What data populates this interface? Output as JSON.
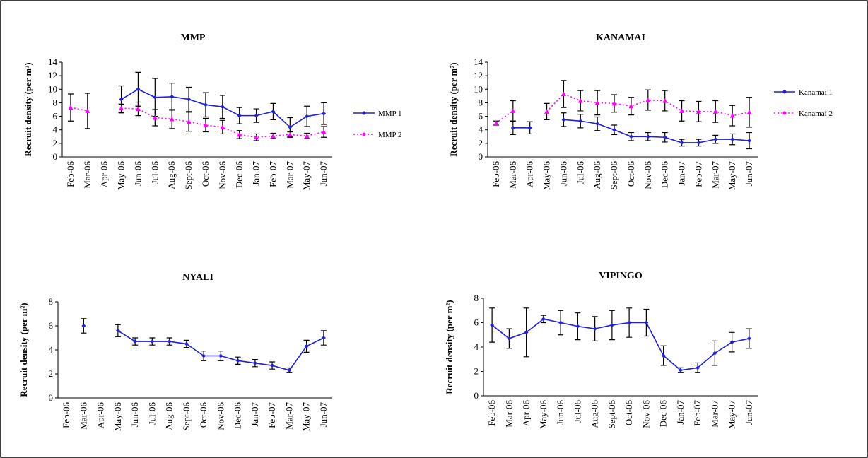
{
  "chart_data": [
    {
      "type": "line",
      "title": "MMP",
      "y_label": "Recruit density (per m²)",
      "categories": [
        "Feb-06",
        "Mar-06",
        "Apr-06",
        "May-06",
        "Jun-06",
        "Jul-06",
        "Aug-06",
        "Sept-06",
        "Oct-06",
        "Nov-06",
        "Dec-06",
        "Jan-07",
        "Feb-07",
        "Mar-07",
        "May-07",
        "Jun-07"
      ],
      "ylim": [
        0,
        14
      ],
      "yticks": [
        0,
        2,
        4,
        6,
        8,
        10,
        12,
        14
      ],
      "legend": "right",
      "series": [
        {
          "name": "MMP 1",
          "color": "#1f1fe0",
          "line_style": "solid",
          "values": [
            null,
            null,
            null,
            8.5,
            10,
            8.8,
            8.9,
            8.5,
            7.7,
            7.4,
            6.1,
            6.1,
            6.7,
            4.4,
            6,
            6.4
          ],
          "errors": [
            null,
            null,
            null,
            2,
            2.5,
            2.8,
            2,
            1.8,
            1.8,
            1.7,
            1.2,
            1,
            1.2,
            1.4,
            1.5,
            1.6
          ]
        },
        {
          "name": "MMP 2",
          "color": "#ff00ff",
          "line_style": "dotted",
          "values": [
            7.3,
            6.8,
            null,
            7.2,
            7.1,
            5.8,
            5.6,
            5.2,
            4.7,
            4.4,
            3.3,
            2.9,
            3.1,
            3.3,
            3.1,
            3.7
          ],
          "errors": [
            2,
            2.6,
            null,
            0.6,
            1,
            1.2,
            1.4,
            1.4,
            1,
            1,
            0.6,
            0.5,
            0.4,
            0.4,
            0.4,
            0.8
          ]
        }
      ]
    },
    {
      "type": "line",
      "title": "KANAMAI",
      "y_label": "Recruit density (per m²)",
      "categories": [
        "Feb-06",
        "Mar-06",
        "Apr-06",
        "May-06",
        "Jun-06",
        "Jul-06",
        "Aug-06",
        "Sept-06",
        "Oct-06",
        "Nov-06",
        "Dec-06",
        "Jan-07",
        "Feb-07",
        "Mar-07",
        "May-07",
        "Jun-07"
      ],
      "ylim": [
        0,
        14
      ],
      "yticks": [
        0,
        2,
        4,
        6,
        8,
        10,
        12,
        14
      ],
      "legend": "right",
      "series": [
        {
          "name": "Kanamai 1",
          "color": "#1f1fe0",
          "line_style": "solid",
          "values": [
            null,
            4.3,
            4.3,
            null,
            5.5,
            5.3,
            4.9,
            4,
            3,
            3,
            2.9,
            2.1,
            2.1,
            2.6,
            2.6,
            2.4
          ],
          "errors": [
            null,
            1,
            0.9,
            null,
            1,
            1,
            1,
            0.7,
            0.6,
            0.6,
            0.7,
            0.5,
            0.5,
            0.6,
            0.8,
            1.2
          ]
        },
        {
          "name": "Kanamai 2",
          "color": "#ff00ff",
          "line_style": "dotted",
          "values": [
            5,
            6.8,
            null,
            6.7,
            9.3,
            8.3,
            8,
            7.9,
            7.5,
            8.4,
            8.3,
            6.8,
            6.7,
            6.7,
            6.1,
            6.6
          ],
          "errors": [
            0.3,
            1.5,
            null,
            1.2,
            2,
            1.5,
            1.8,
            1.3,
            1.3,
            1.5,
            1.5,
            1.5,
            1.5,
            1.6,
            1.5,
            2.2
          ]
        }
      ]
    },
    {
      "type": "line",
      "title": "NYALI",
      "y_label": "Recruit density (per m²)",
      "categories": [
        "Feb-06",
        "Mar-06",
        "Apr-06",
        "May-06",
        "Jun-06",
        "Jul-06",
        "Aug-06",
        "Sept-06",
        "Oct-06",
        "Nov-06",
        "Dec-06",
        "Jan-07",
        "Feb-07",
        "Mar-07",
        "May-07",
        "Jun-07"
      ],
      "ylim": [
        0,
        8
      ],
      "yticks": [
        0,
        2,
        4,
        6,
        8
      ],
      "series": [
        {
          "color": "#1f1fe0",
          "line_style": "solid",
          "values": [
            null,
            6,
            null,
            5.6,
            4.7,
            4.7,
            4.7,
            4.5,
            3.5,
            3.5,
            3.1,
            2.9,
            2.7,
            2.3,
            4.3,
            5
          ],
          "errors": [
            null,
            0.6,
            null,
            0.5,
            0.3,
            0.3,
            0.3,
            0.3,
            0.4,
            0.4,
            0.3,
            0.3,
            0.3,
            0.2,
            0.5,
            0.6
          ]
        }
      ]
    },
    {
      "type": "line",
      "title": "VIPINGO",
      "y_label": "Recruit density (per m²)",
      "categories": [
        "Feb-06",
        "Mar-06",
        "Apr-06",
        "May-06",
        "Jun-06",
        "Jul-06",
        "Aug-06",
        "Sept-06",
        "Oct-06",
        "Nov-06",
        "Dec-06",
        "Jan-07",
        "Feb-07",
        "Mar-07",
        "May-07",
        "Jun-07"
      ],
      "ylim": [
        0,
        8
      ],
      "yticks": [
        0,
        2,
        4,
        6,
        8
      ],
      "series": [
        {
          "color": "#1f1fe0",
          "line_style": "solid",
          "values": [
            5.8,
            4.7,
            5.2,
            6.3,
            6,
            5.7,
            5.5,
            5.8,
            6,
            6,
            3.3,
            2.1,
            2.3,
            3.5,
            4.4,
            4.7
          ],
          "errors": [
            1.4,
            0.8,
            2,
            0.3,
            1,
            1.1,
            1,
            1.2,
            1.2,
            1.1,
            0.8,
            0.2,
            0.4,
            1,
            0.8,
            0.8
          ]
        }
      ]
    }
  ]
}
